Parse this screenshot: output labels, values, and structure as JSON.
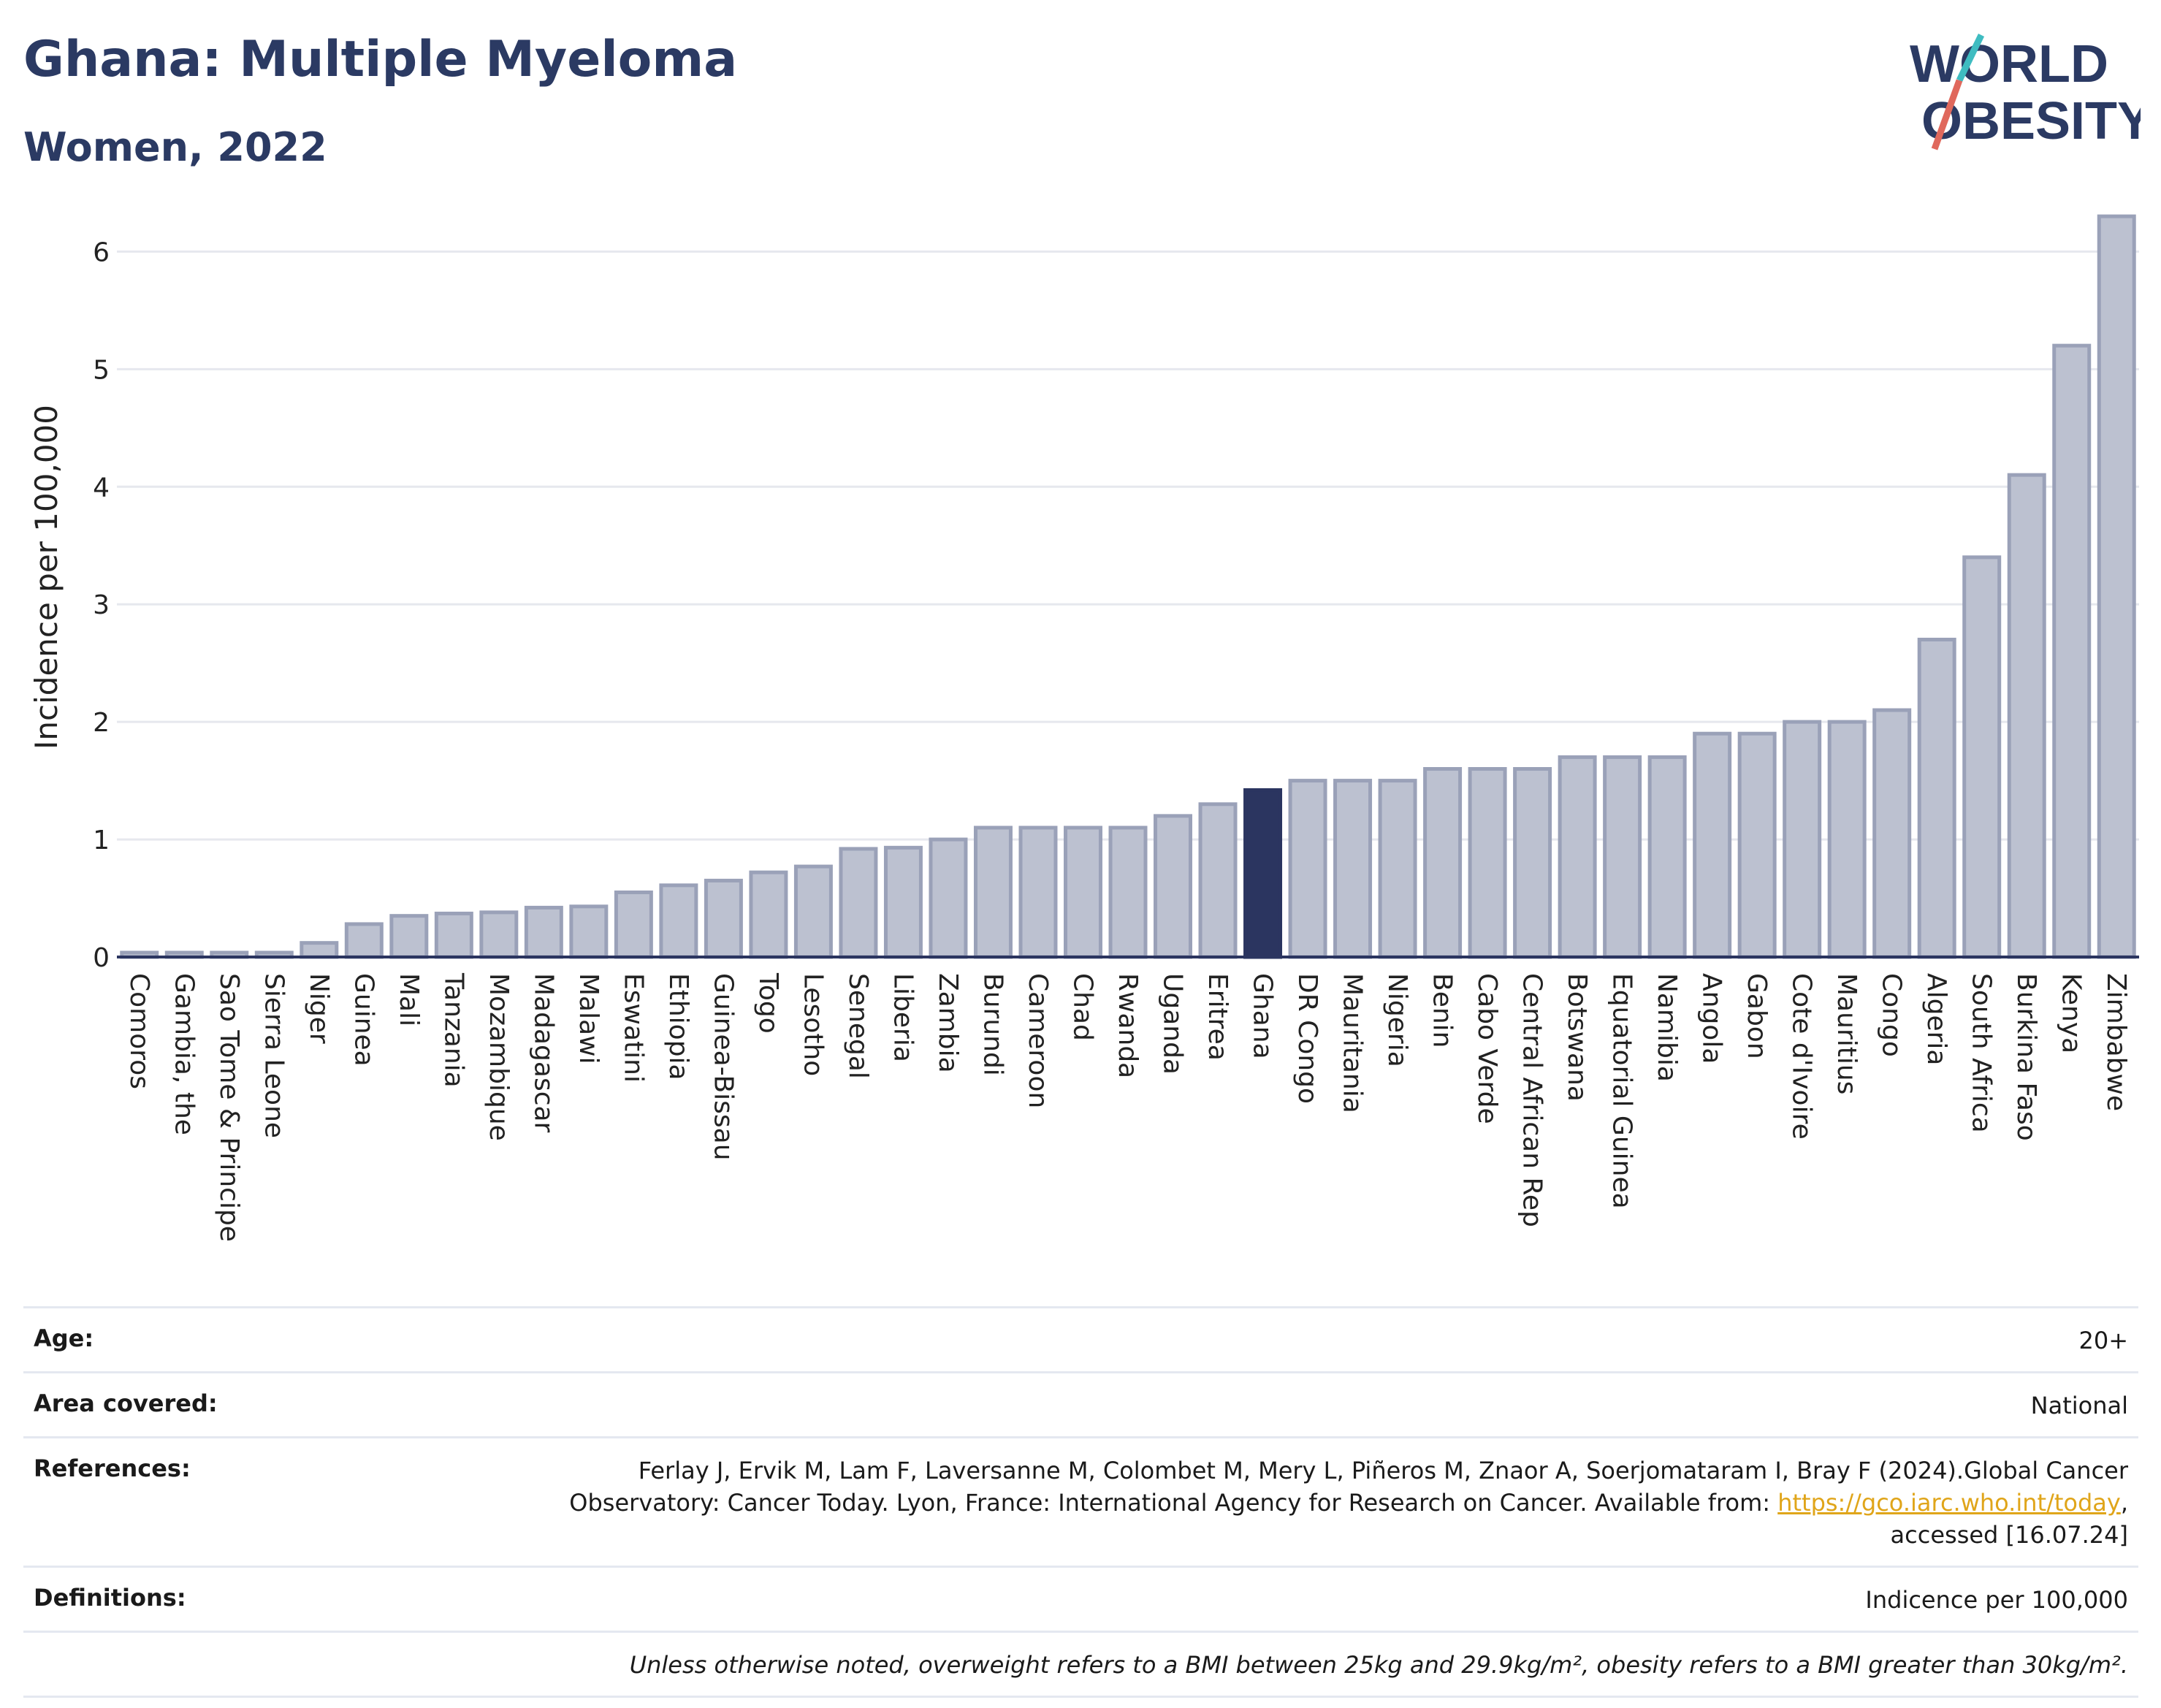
{
  "header": {
    "title": "Ghana: Multiple Myeloma",
    "subtitle": "Women, 2022"
  },
  "logo": {
    "line1": "WORLD",
    "line2": "OBESITY"
  },
  "colors": {
    "bar": "#bcc1d0",
    "bar_stroke": "#9aa1b8",
    "highlight": "#2b3560",
    "title": "#2b3a63",
    "logo_teal": "#3fbcc1",
    "logo_coral": "#e0685c"
  },
  "chart_data": {
    "type": "bar",
    "title": "Ghana: Multiple Myeloma",
    "subtitle": "Women, 2022",
    "ylabel": "Incidence per 100,000",
    "xlabel": "",
    "ylim": [
      0,
      6.4
    ],
    "yticks": [
      0,
      1,
      2,
      3,
      4,
      5,
      6
    ],
    "grid": true,
    "highlight": "Ghana",
    "categories": [
      "Comoros",
      "Gambia, the",
      "Sao Tome & Principe",
      "Sierra Leone",
      "Niger",
      "Guinea",
      "Mali",
      "Tanzania",
      "Mozambique",
      "Madagascar",
      "Malawi",
      "Eswatini",
      "Ethiopia",
      "Guinea-Bissau",
      "Togo",
      "Lesotho",
      "Senegal",
      "Liberia",
      "Zambia",
      "Burundi",
      "Cameroon",
      "Chad",
      "Rwanda",
      "Uganda",
      "Eritrea",
      "Ghana",
      "DR Congo",
      "Mauritania",
      "Nigeria",
      "Benin",
      "Cabo Verde",
      "Central African Rep",
      "Botswana",
      "Equatorial Guinea",
      "Namibia",
      "Angola",
      "Gabon",
      "Cote d'Ivoire",
      "Mauritius",
      "Congo",
      "Algeria",
      "South Africa",
      "Burkina Faso",
      "Kenya",
      "Zimbabwe"
    ],
    "values": [
      0.02,
      0.02,
      0.02,
      0.02,
      0.12,
      0.28,
      0.35,
      0.37,
      0.38,
      0.42,
      0.43,
      0.55,
      0.61,
      0.65,
      0.72,
      0.77,
      0.92,
      0.93,
      1.0,
      1.1,
      1.1,
      1.1,
      1.1,
      1.2,
      1.3,
      1.42,
      1.5,
      1.5,
      1.5,
      1.6,
      1.6,
      1.6,
      1.7,
      1.7,
      1.7,
      1.9,
      1.9,
      2.0,
      2.0,
      2.1,
      2.7,
      3.4,
      4.1,
      5.2,
      6.3
    ]
  },
  "meta": {
    "age_label": "Age:",
    "age_value": "20+",
    "area_label": "Area covered:",
    "area_value": "National",
    "references_label": "References:",
    "references_line1": "Ferlay J, Ervik M, Lam F, Laversanne M, Colombet M, Mery L, Piñeros M, Znaor A, Soerjomataram I, Bray F (2024).Global Cancer",
    "references_line2_pre": "Observatory: Cancer Today. Lyon, France: International Agency for Research on Cancer. Available from: ",
    "references_link": "https://gco.iarc.who.int/today",
    "references_line2_post": ",",
    "references_line3": "accessed [16.07.24]",
    "definitions_label": "Definitions:",
    "definitions_value": "Indicence per 100,000",
    "note": "Unless otherwise noted, overweight refers to a BMI between 25kg and 29.9kg/m², obesity refers to a BMI greater than 30kg/m²."
  }
}
